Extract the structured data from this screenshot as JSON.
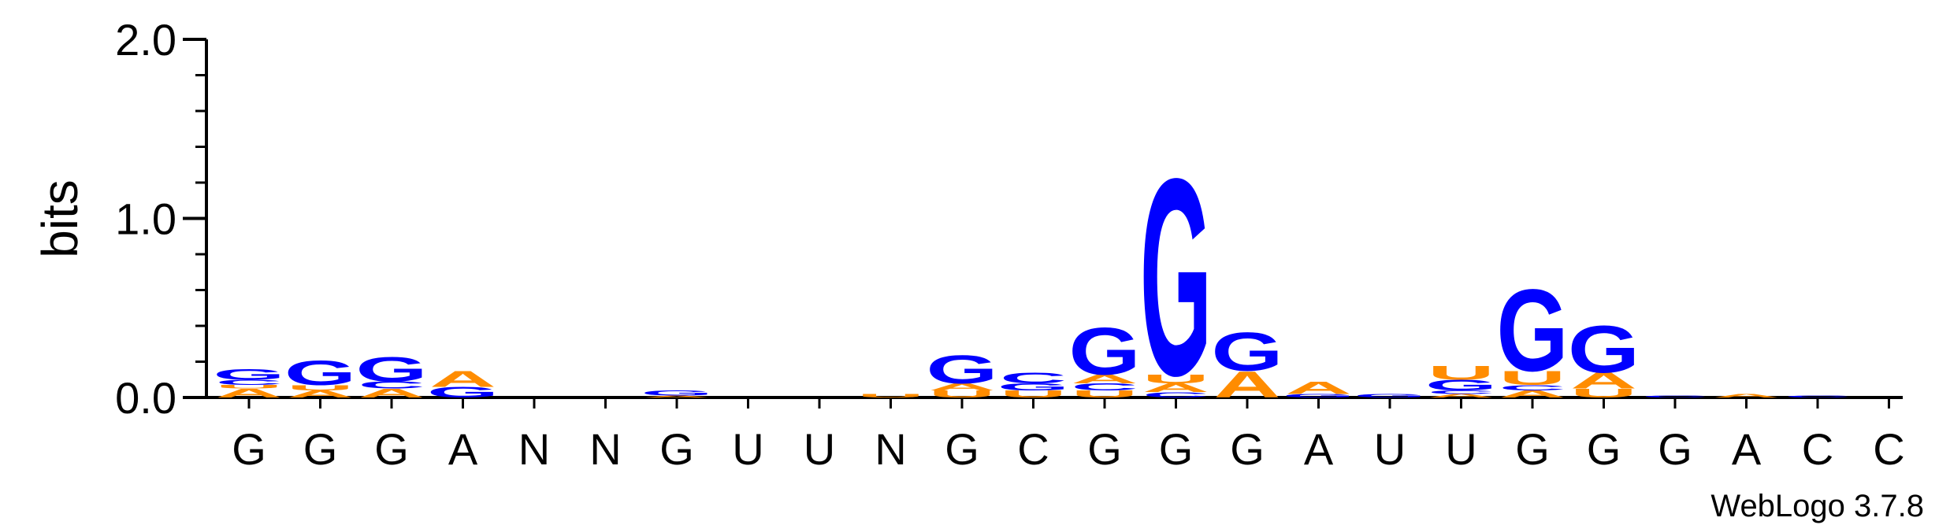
{
  "chart_data": {
    "type": "sequence-logo",
    "ylabel": "bits",
    "ylim": [
      0,
      2.0
    ],
    "yticks": [
      "0.0",
      "1.0",
      "2.0"
    ],
    "grid": false,
    "alphabet_colors": {
      "G": "#0000ff",
      "C": "#0000ff",
      "A": "#ff8c00",
      "U": "#ff8c00"
    },
    "credit": "WebLogo 3.7.8",
    "positions": [
      {
        "label": "G",
        "stack": [
          {
            "letter": "A",
            "bits": 0.05
          },
          {
            "letter": "U",
            "bits": 0.02
          },
          {
            "letter": "C",
            "bits": 0.03
          },
          {
            "letter": "G",
            "bits": 0.06
          }
        ]
      },
      {
        "label": "G",
        "stack": [
          {
            "letter": "A",
            "bits": 0.04
          },
          {
            "letter": "U",
            "bits": 0.03
          },
          {
            "letter": "G",
            "bits": 0.14
          }
        ]
      },
      {
        "label": "G",
        "stack": [
          {
            "letter": "A",
            "bits": 0.05
          },
          {
            "letter": "C",
            "bits": 0.04
          },
          {
            "letter": "G",
            "bits": 0.14
          }
        ]
      },
      {
        "label": "A",
        "stack": [
          {
            "letter": "G",
            "bits": 0.06
          },
          {
            "letter": "A",
            "bits": 0.09
          }
        ]
      },
      {
        "label": "N",
        "stack": []
      },
      {
        "label": "N",
        "stack": []
      },
      {
        "label": "G",
        "stack": [
          {
            "letter": "A",
            "bits": 0.01
          },
          {
            "letter": "G",
            "bits": 0.03
          }
        ]
      },
      {
        "label": "U",
        "stack": []
      },
      {
        "label": "U",
        "stack": []
      },
      {
        "label": "N",
        "stack": [
          {
            "letter": "U",
            "bits": 0.02
          }
        ]
      },
      {
        "label": "G",
        "stack": [
          {
            "letter": "U",
            "bits": 0.04
          },
          {
            "letter": "A",
            "bits": 0.04
          },
          {
            "letter": "G",
            "bits": 0.16
          }
        ]
      },
      {
        "label": "C",
        "stack": [
          {
            "letter": "U",
            "bits": 0.04
          },
          {
            "letter": "G",
            "bits": 0.04
          },
          {
            "letter": "C",
            "bits": 0.06
          }
        ]
      },
      {
        "label": "G",
        "stack": [
          {
            "letter": "U",
            "bits": 0.04
          },
          {
            "letter": "C",
            "bits": 0.04
          },
          {
            "letter": "A",
            "bits": 0.05
          },
          {
            "letter": "G",
            "bits": 0.27
          }
        ]
      },
      {
        "label": "G",
        "stack": [
          {
            "letter": "C",
            "bits": 0.03
          },
          {
            "letter": "A",
            "bits": 0.05
          },
          {
            "letter": "U",
            "bits": 0.05
          },
          {
            "letter": "G",
            "bits": 1.13
          }
        ]
      },
      {
        "label": "G",
        "stack": [
          {
            "letter": "A",
            "bits": 0.15
          },
          {
            "letter": "G",
            "bits": 0.22
          }
        ]
      },
      {
        "label": "A",
        "stack": [
          {
            "letter": "G",
            "bits": 0.02
          },
          {
            "letter": "A",
            "bits": 0.07
          }
        ]
      },
      {
        "label": "U",
        "stack": [
          {
            "letter": "G",
            "bits": 0.02
          }
        ]
      },
      {
        "label": "U",
        "stack": [
          {
            "letter": "A",
            "bits": 0.02
          },
          {
            "letter": "C",
            "bits": 0.02
          },
          {
            "letter": "G",
            "bits": 0.06
          },
          {
            "letter": "U",
            "bits": 0.08
          }
        ]
      },
      {
        "label": "G",
        "stack": [
          {
            "letter": "A",
            "bits": 0.04
          },
          {
            "letter": "C",
            "bits": 0.03
          },
          {
            "letter": "U",
            "bits": 0.08
          },
          {
            "letter": "G",
            "bits": 0.47
          }
        ]
      },
      {
        "label": "G",
        "stack": [
          {
            "letter": "U",
            "bits": 0.05
          },
          {
            "letter": "A",
            "bits": 0.09
          },
          {
            "letter": "G",
            "bits": 0.27
          }
        ]
      },
      {
        "label": "G",
        "stack": [
          {
            "letter": "C",
            "bits": 0.01
          }
        ]
      },
      {
        "label": "A",
        "stack": [
          {
            "letter": "A",
            "bits": 0.02
          }
        ]
      },
      {
        "label": "C",
        "stack": [
          {
            "letter": "C",
            "bits": 0.01
          }
        ]
      },
      {
        "label": "C",
        "stack": []
      }
    ]
  }
}
